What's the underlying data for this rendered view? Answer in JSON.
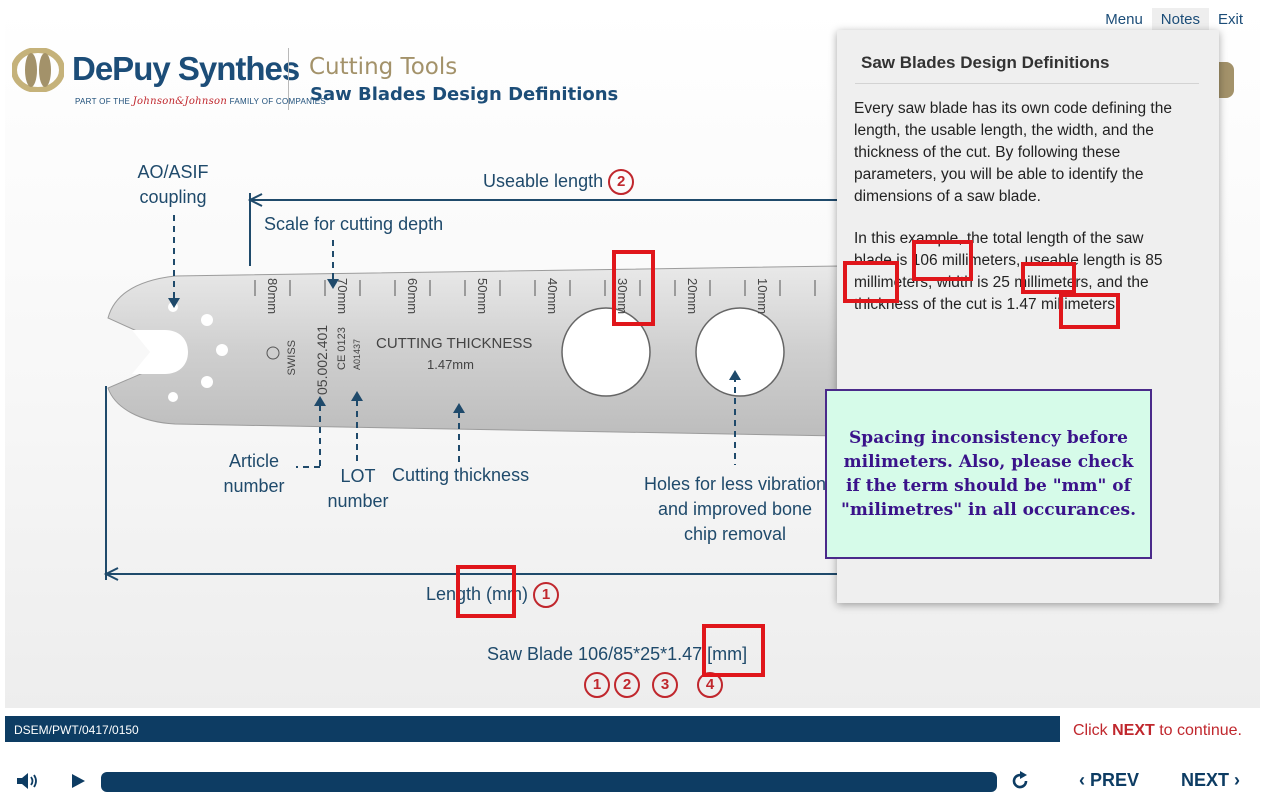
{
  "nav": {
    "menu": "Menu",
    "notes": "Notes",
    "exit": "Exit"
  },
  "brand": {
    "logo": "DePuy Synthes",
    "tagline_pre": "PART OF THE",
    "tagline_jj": "Johnson&Johnson",
    "tagline_post": "FAMILY OF COMPANIES"
  },
  "header": {
    "course": "Cutting Tools",
    "title": "Saw Blades Design Definitions"
  },
  "diagram": {
    "coupling": "AO/ASIF\ncoupling",
    "useable": "Useable length",
    "useable_num": "2",
    "scale": "Scale for cutting depth",
    "article": "Article\nnumber",
    "lot": "LOT\nnumber",
    "cutting": "Cutting thickness",
    "holes": "Holes for less vibration\nand improved bone\nchip removal",
    "length": "Length (mm)",
    "length_num": "1",
    "blade_code": "Saw Blade 106/85*25*1.47 [mm]",
    "code_nums": [
      "1",
      "2",
      "3",
      "4"
    ],
    "blade_text": {
      "thickness_title": "CUTTING THICKNESS",
      "thickness_val": "1.47mm",
      "swiss": "SWISS",
      "article_no": "05.002.401",
      "ce": "CE 0123",
      "lot_no": "A01437"
    },
    "scale_ticks": [
      "80mm",
      "70mm",
      "60mm",
      "50mm",
      "40mm",
      "30mm",
      "20mm",
      "10mm"
    ]
  },
  "notes": {
    "title": "Saw Blades Design Definitions",
    "p1": "Every saw blade has its own code defining the length, the usable length, the width, and the thickness of the cut. By following these parameters, you will be able to identify the dimensions of a saw blade.",
    "p2": "In this example, the total length of the saw blade is 106 millimeters, useable length is 85 millimeters, width is 25 millimeters, and the thickness of the cut is 1.47 millimeters."
  },
  "review_note": "Spacing inconsistency before milimeters. Also, please check if the term should be \"mm\" of \"milimetres\" in all occurances.",
  "footer": {
    "doc_code": "DSEM/PWT/0417/0150",
    "continue_pre": "Click ",
    "continue_next": "NEXT",
    "continue_post": " to continue.",
    "prev": "PREV",
    "next": "NEXT"
  },
  "colors": {
    "brand_blue": "#0d3c63",
    "gold": "#a3926a",
    "red": "#c0272d",
    "markup_red": "#e0161b"
  },
  "icons": {
    "audio": "speaker-icon",
    "play": "play-icon",
    "replay": "replay-icon",
    "prev": "chevron-left-icon",
    "next": "chevron-right-icon"
  }
}
